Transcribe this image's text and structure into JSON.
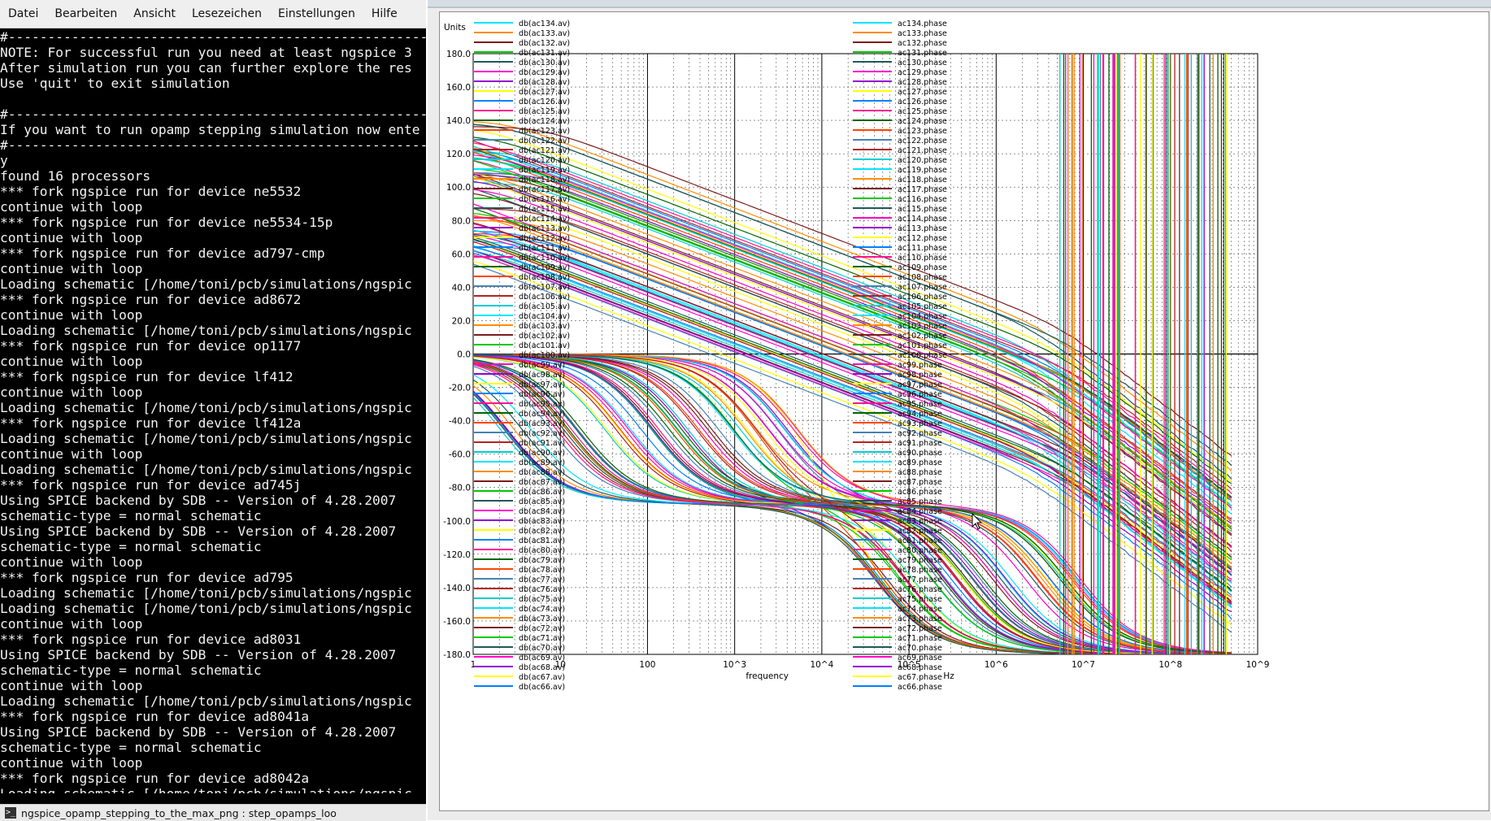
{
  "terminal": {
    "menu": [
      "Datei",
      "Bearbeiten",
      "Ansicht",
      "Lesezeichen",
      "Einstellungen",
      "Hilfe"
    ],
    "lines": [
      "#------------------------------------------------------------",
      "NOTE: For successful run you need at least ngspice 3",
      "After simulation run you can further explore the res",
      "Use 'quit' to exit simulation",
      "",
      "#------------------------------------------------------------",
      "If you want to run opamp stepping simulation now ente",
      "#------------------------------------------------------------",
      "y",
      "found 16 processors",
      "*** fork ngspice run for device ne5532",
      "continue with loop",
      "*** fork ngspice run for device ne5534-15p",
      "continue with loop",
      "*** fork ngspice run for device ad797-cmp",
      "continue with loop",
      "Loading schematic [/home/toni/pcb/simulations/ngspic",
      "*** fork ngspice run for device ad8672",
      "continue with loop",
      "Loading schematic [/home/toni/pcb/simulations/ngspic",
      "*** fork ngspice run for device op1177",
      "continue with loop",
      "*** fork ngspice run for device lf412",
      "continue with loop",
      "Loading schematic [/home/toni/pcb/simulations/ngspic",
      "*** fork ngspice run for device lf412a",
      "Loading schematic [/home/toni/pcb/simulations/ngspic",
      "continue with loop",
      "Loading schematic [/home/toni/pcb/simulations/ngspic",
      "*** fork ngspice run for device ad745j",
      "Using SPICE backend by SDB -- Version of 4.28.2007",
      "schematic-type = normal schematic",
      "Using SPICE backend by SDB -- Version of 4.28.2007",
      "schematic-type = normal schematic",
      "continue with loop",
      "*** fork ngspice run for device ad795",
      "Loading schematic [/home/toni/pcb/simulations/ngspic",
      "Loading schematic [/home/toni/pcb/simulations/ngspic",
      "continue with loop",
      "*** fork ngspice run for device ad8031",
      "Using SPICE backend by SDB -- Version of 4.28.2007",
      "schematic-type = normal schematic",
      "continue with loop",
      "Loading schematic [/home/toni/pcb/simulations/ngspic",
      "*** fork ngspice run for device ad8041a",
      "Using SPICE backend by SDB -- Version of 4.28.2007",
      "schematic-type = normal schematic",
      "continue with loop",
      "*** fork ngspice run for device ad8042a",
      "Loading schematic [/home/toni/pcb/simulations/ngspic"
    ],
    "taskbar_label": "ngspice_opamp_stepping_to_the_max_png : step_opamps_loo"
  },
  "plot": {
    "units_label": "Units",
    "xlabel": "frequency",
    "xunit": "Hz",
    "y_ticks": [
      "180.0",
      "160.0",
      "140.0",
      "120.0",
      "100.0",
      "80.0",
      "60.0",
      "40.0",
      "20.0",
      "0.0",
      "-20.0",
      "-40.0",
      "-60.0",
      "-80.0",
      "-100.0",
      "-120.0",
      "-140.0",
      "-160.0",
      "-180.0"
    ],
    "x_ticks": [
      "1",
      "10",
      "100",
      "10^3",
      "10^4",
      "10^5",
      "10^6",
      "10^7",
      "10^8",
      "10^9"
    ],
    "legend_left": [
      "db(ac134.av)",
      "db(ac133.av)",
      "db(ac132.av)",
      "db(ac131.av)",
      "db(ac130.av)",
      "db(ac129.av)",
      "db(ac128.av)",
      "db(ac127.av)",
      "db(ac126.av)",
      "db(ac125.av)",
      "db(ac124.av)",
      "db(ac123.av)",
      "db(ac122.av)",
      "db(ac121.av)",
      "db(ac120.av)",
      "db(ac119.av)",
      "db(ac118.av)",
      "db(ac117.av)",
      "db(ac116.av)",
      "db(ac115.av)",
      "db(ac114.av)",
      "db(ac113.av)",
      "db(ac112.av)",
      "db(ac111.av)",
      "db(ac110.av)",
      "db(ac109.av)",
      "db(ac108.av)",
      "db(ac107.av)",
      "db(ac106.av)",
      "db(ac105.av)",
      "db(ac104.av)",
      "db(ac103.av)",
      "db(ac102.av)",
      "db(ac101.av)",
      "db(ac100.av)",
      "db(ac99.av)",
      "db(ac98.av)",
      "db(ac97.av)",
      "db(ac96.av)",
      "db(ac95.av)",
      "db(ac94.av)",
      "db(ac93.av)",
      "db(ac92.av)",
      "db(ac91.av)",
      "db(ac90.av)",
      "db(ac89.av)",
      "db(ac88.av)",
      "db(ac87.av)",
      "db(ac86.av)",
      "db(ac85.av)",
      "db(ac84.av)",
      "db(ac83.av)",
      "db(ac82.av)",
      "db(ac81.av)",
      "db(ac80.av)",
      "db(ac79.av)",
      "db(ac78.av)",
      "db(ac77.av)",
      "db(ac76.av)",
      "db(ac75.av)",
      "db(ac74.av)",
      "db(ac73.av)",
      "db(ac72.av)",
      "db(ac71.av)",
      "db(ac70.av)",
      "db(ac69.av)",
      "db(ac68.av)",
      "db(ac67.av)",
      "db(ac66.av)"
    ],
    "legend_right": [
      "ac134.phase",
      "ac133.phase",
      "ac132.phase",
      "ac131.phase",
      "ac130.phase",
      "ac129.phase",
      "ac128.phase",
      "ac127.phase",
      "ac126.phase",
      "ac125.phase",
      "ac124.phase",
      "ac123.phase",
      "ac122.phase",
      "ac121.phase",
      "ac120.phase",
      "ac119.phase",
      "ac118.phase",
      "ac117.phase",
      "ac116.phase",
      "ac115.phase",
      "ac114.phase",
      "ac113.phase",
      "ac112.phase",
      "ac111.phase",
      "ac110.phase",
      "ac109.phase",
      "ac108.phase",
      "ac107.phase",
      "ac106.phase",
      "ac105.phase",
      "ac104.phase",
      "ac103.phase",
      "ac102.phase",
      "ac101.phase",
      "ac100.phase",
      "ac99.phase",
      "ac98.phase",
      "ac97.phase",
      "ac96.phase",
      "ac95.phase",
      "ac94.phase",
      "ac93.phase",
      "ac92.phase",
      "ac91.phase",
      "ac90.phase",
      "ac89.phase",
      "ac88.phase",
      "ac87.phase",
      "ac86.phase",
      "ac85.phase",
      "ac84.phase",
      "ac83.phase",
      "ac82.phase",
      "ac81.phase",
      "ac80.phase",
      "ac79.phase",
      "ac78.phase",
      "ac77.phase",
      "ac76.phase",
      "ac75.phase",
      "ac74.phase",
      "ac73.phase",
      "ac72.phase",
      "ac71.phase",
      "ac70.phase",
      "ac69.phase",
      "ac68.phase",
      "ac67.phase",
      "ac66.phase"
    ],
    "series_colors": [
      "#00e5ff",
      "#ff8c00",
      "#7a1c1c",
      "#00c800",
      "#1c5a5a",
      "#ff00c8",
      "#9400d3",
      "#ffff00",
      "#0080ff",
      "#ff1493",
      "#006400",
      "#ff4500",
      "#4682b4",
      "#b22222",
      "#00ced1"
    ]
  },
  "chart_data": {
    "type": "line",
    "xlabel": "frequency",
    "xunit": "Hz",
    "ylabel": "Units",
    "xscale": "log",
    "xlim": [
      1,
      1000000000
    ],
    "ylim": [
      -180,
      180
    ],
    "grid": true,
    "legend": "two columns inside plot (top-left and top-center)",
    "magnitude_series": {
      "names_from": "db(ac66.av) ... db(ac134.av)",
      "dc_gain_range_db": [
        60,
        140
      ],
      "rolloff_db_per_decade": -20,
      "note": "approx. 69 open-loop gain curves starting 60-140 dB and falling ~20 dB/decade"
    },
    "phase_series": {
      "names_from": "ac66.phase ... ac134.phase",
      "low_freq_value": 0,
      "mid_band_value": -90,
      "note": "phase curves near 0 at low frequency, settling near -90 and wrapping between -180 and 180 above 10^6 Hz"
    }
  }
}
